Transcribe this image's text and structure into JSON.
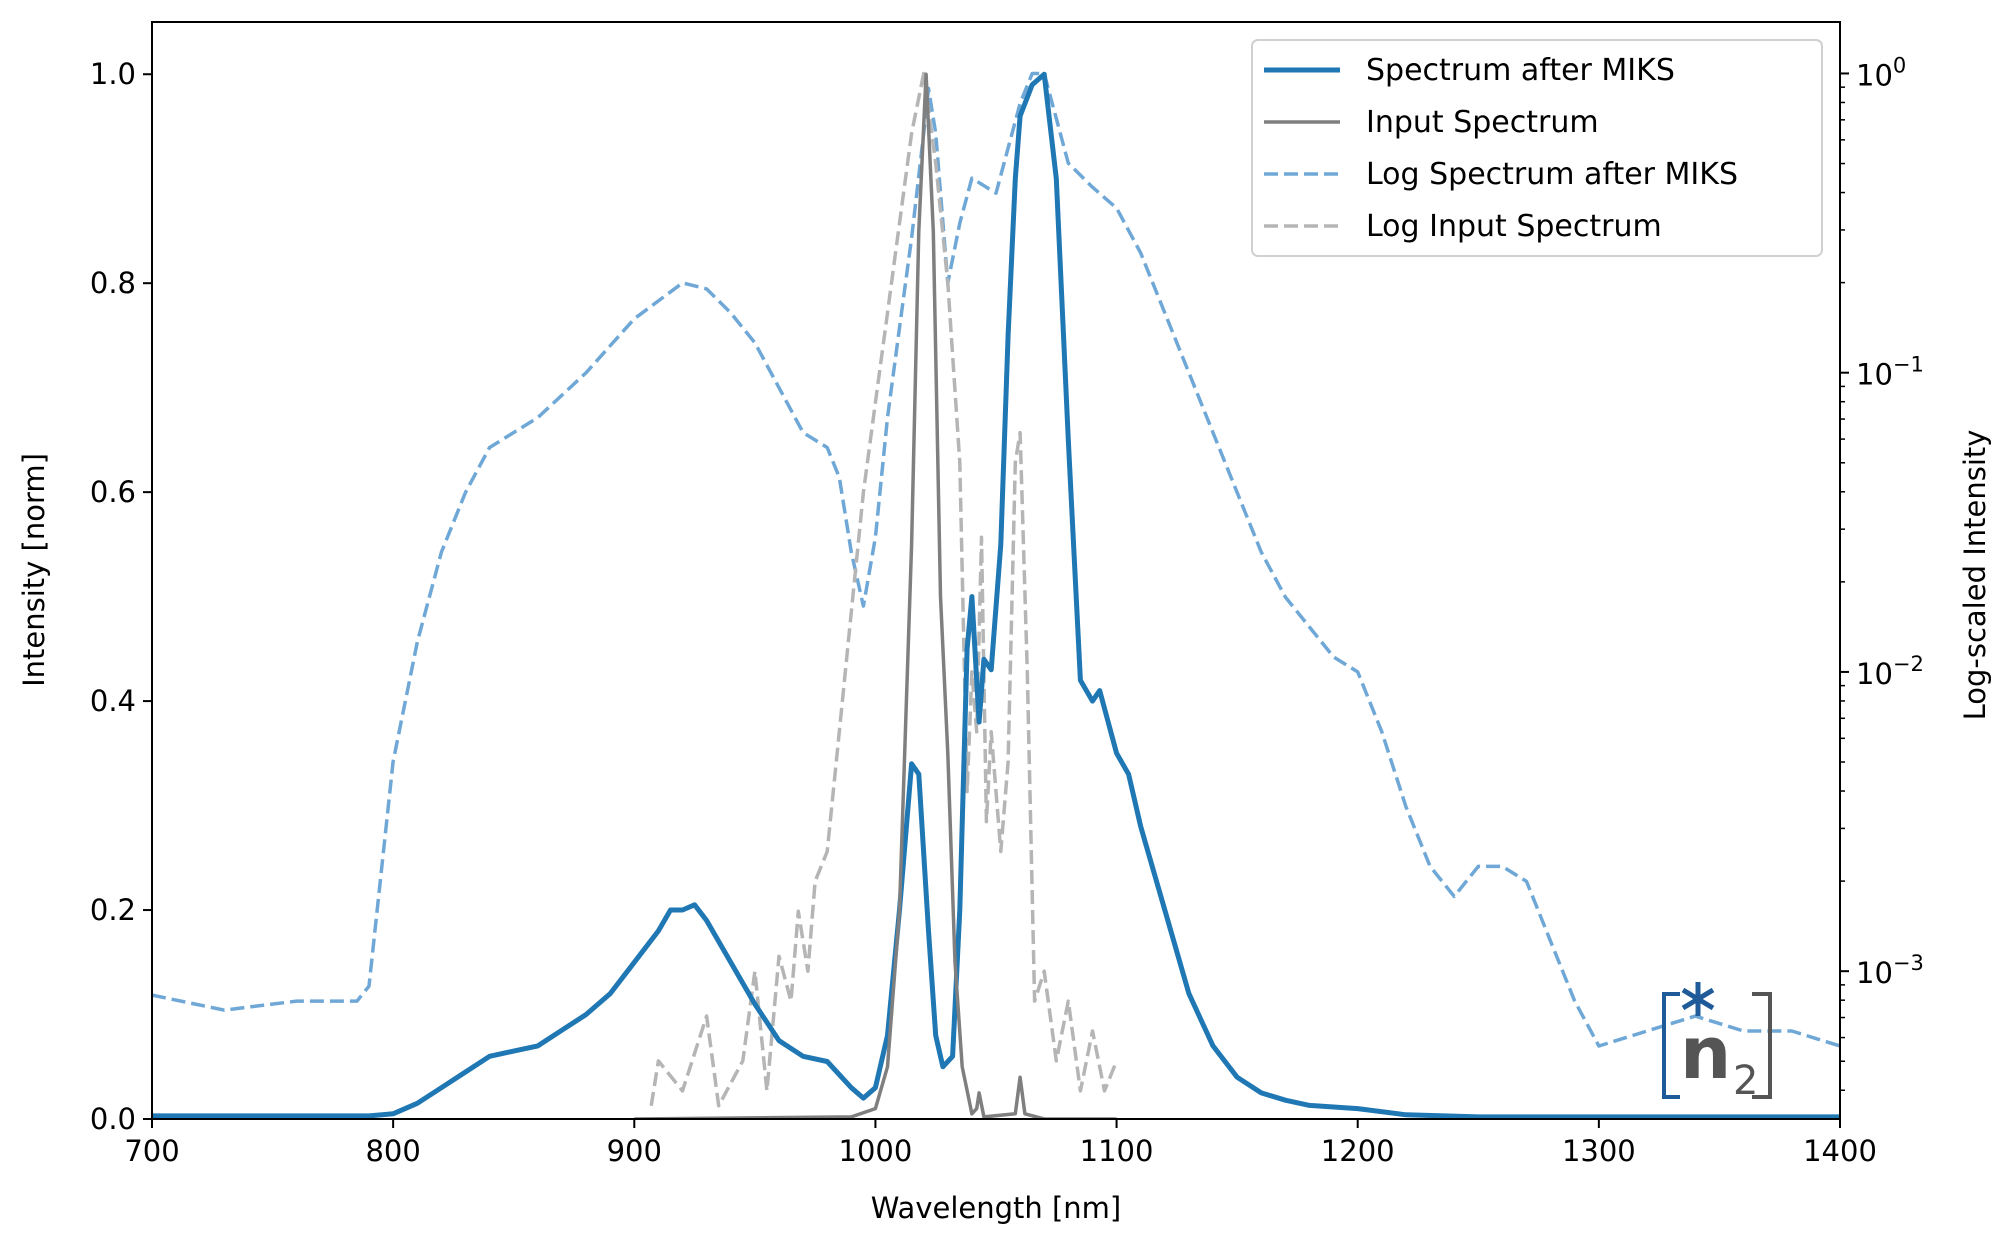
{
  "chart_data": {
    "type": "line",
    "title": "",
    "xlabel": "Wavelength [nm]",
    "ylabel": "Intensity [norm]",
    "ylabel_right": "Log-scaled Intensity",
    "xlim": [
      700,
      1400
    ],
    "ylim": [
      0,
      1.05
    ],
    "ylim_right_log10": [
      -3.494,
      0.172
    ],
    "xticks": [
      700,
      800,
      900,
      1000,
      1100,
      1200,
      1300,
      1400
    ],
    "xtick_labels": [
      "700",
      "800",
      "900",
      "1000",
      "1100",
      "1200",
      "1300",
      "1400"
    ],
    "yticks": [
      0,
      0.2,
      0.4,
      0.6,
      0.8,
      1.0
    ],
    "ytick_labels": [
      "0.0",
      "0.2",
      "0.4",
      "0.6",
      "0.8",
      "1.0"
    ],
    "yticks_right_exp": [
      0,
      -1,
      -2,
      -3
    ],
    "ytick_right_base": "10",
    "ytick_right_exp_labels": [
      "0",
      "−1",
      "−2",
      "−3"
    ],
    "grid": false,
    "legend_position": "top-right",
    "series": [
      {
        "name": "Spectrum after MIKS",
        "axis": "left",
        "style": "solid",
        "color": "#1f77b4",
        "x": [
          700,
          790,
          800,
          810,
          820,
          830,
          840,
          850,
          860,
          870,
          880,
          890,
          900,
          910,
          915,
          920,
          925,
          930,
          940,
          950,
          960,
          970,
          980,
          990,
          995,
          1000,
          1005,
          1010,
          1015,
          1018,
          1022,
          1025,
          1028,
          1032,
          1035,
          1038,
          1040,
          1043,
          1045,
          1048,
          1052,
          1055,
          1058,
          1060,
          1065,
          1070,
          1075,
          1080,
          1085,
          1090,
          1093,
          1100,
          1105,
          1110,
          1120,
          1130,
          1140,
          1150,
          1160,
          1170,
          1180,
          1200,
          1220,
          1250,
          1400
        ],
        "y": [
          0.003,
          0.003,
          0.005,
          0.015,
          0.03,
          0.045,
          0.06,
          0.065,
          0.07,
          0.085,
          0.1,
          0.12,
          0.15,
          0.18,
          0.2,
          0.2,
          0.205,
          0.19,
          0.15,
          0.11,
          0.075,
          0.06,
          0.055,
          0.03,
          0.02,
          0.03,
          0.08,
          0.2,
          0.34,
          0.33,
          0.18,
          0.08,
          0.05,
          0.06,
          0.2,
          0.45,
          0.5,
          0.38,
          0.44,
          0.43,
          0.55,
          0.75,
          0.9,
          0.96,
          0.99,
          1.0,
          0.9,
          0.65,
          0.42,
          0.4,
          0.41,
          0.35,
          0.33,
          0.28,
          0.2,
          0.12,
          0.07,
          0.04,
          0.025,
          0.018,
          0.013,
          0.01,
          0.004,
          0.002,
          0.002
        ]
      },
      {
        "name": "Input Spectrum",
        "axis": "left",
        "style": "solid",
        "color": "#7f7f7f",
        "x": [
          900,
          990,
          1000,
          1005,
          1010,
          1015,
          1018,
          1021,
          1024,
          1027,
          1030,
          1033,
          1036,
          1040,
          1042,
          1043,
          1045,
          1058,
          1060,
          1062,
          1070,
          1100
        ],
        "y": [
          0,
          0.002,
          0.01,
          0.05,
          0.2,
          0.55,
          0.85,
          1.0,
          0.85,
          0.5,
          0.35,
          0.15,
          0.05,
          0.005,
          0.01,
          0.025,
          0.002,
          0.005,
          0.04,
          0.005,
          0,
          0
        ]
      },
      {
        "name": "Log Spectrum after MIKS",
        "axis": "right",
        "style": "dashed",
        "color": "#6fa8d6",
        "x": [
          700,
          730,
          760,
          785,
          790,
          800,
          810,
          820,
          830,
          840,
          860,
          880,
          900,
          920,
          930,
          940,
          950,
          960,
          970,
          980,
          985,
          990,
          995,
          1000,
          1005,
          1010,
          1015,
          1020,
          1022,
          1025,
          1030,
          1035,
          1040,
          1050,
          1060,
          1065,
          1070,
          1080,
          1090,
          1100,
          1110,
          1120,
          1130,
          1140,
          1150,
          1160,
          1170,
          1180,
          1190,
          1200,
          1210,
          1220,
          1230,
          1240,
          1250,
          1260,
          1270,
          1280,
          1290,
          1300,
          1320,
          1340,
          1360,
          1380,
          1400
        ],
        "log10_y": [
          -3.08,
          -3.13,
          -3.1,
          -3.1,
          -3.05,
          -2.3,
          -1.9,
          -1.6,
          -1.4,
          -1.25,
          -1.15,
          -1.0,
          -0.82,
          -0.7,
          -0.72,
          -0.8,
          -0.9,
          -1.05,
          -1.2,
          -1.25,
          -1.35,
          -1.6,
          -1.78,
          -1.55,
          -1.15,
          -0.85,
          -0.55,
          -0.2,
          -0.05,
          -0.2,
          -0.7,
          -0.5,
          -0.35,
          -0.4,
          -0.1,
          0,
          0,
          -0.3,
          -0.38,
          -0.45,
          -0.6,
          -0.8,
          -1.0,
          -1.2,
          -1.4,
          -1.6,
          -1.75,
          -1.85,
          -1.95,
          -2.0,
          -2.2,
          -2.45,
          -2.65,
          -2.75,
          -2.65,
          -2.65,
          -2.7,
          -2.9,
          -3.1,
          -3.25,
          -3.2,
          -3.15,
          -3.2,
          -3.2,
          -3.25
        ]
      },
      {
        "name": "Log Input Spectrum",
        "axis": "right",
        "style": "dashed",
        "color": "#b5b5b5",
        "x": [
          907,
          910,
          920,
          930,
          935,
          945,
          950,
          955,
          960,
          965,
          968,
          972,
          975,
          980,
          985,
          990,
          995,
          1000,
          1005,
          1010,
          1015,
          1020,
          1025,
          1030,
          1035,
          1038,
          1040,
          1042,
          1044,
          1046,
          1048,
          1052,
          1055,
          1058,
          1060,
          1063,
          1066,
          1070,
          1075,
          1080,
          1085,
          1090,
          1095,
          1100
        ],
        "log10_y": [
          -3.45,
          -3.3,
          -3.4,
          -3.15,
          -3.45,
          -3.3,
          -3.0,
          -3.4,
          -2.95,
          -3.1,
          -2.8,
          -3.0,
          -2.7,
          -2.6,
          -2.2,
          -1.8,
          -1.4,
          -1.1,
          -0.8,
          -0.5,
          -0.2,
          0,
          -0.3,
          -0.7,
          -1.3,
          -2.4,
          -2.0,
          -2.2,
          -1.55,
          -2.5,
          -2.2,
          -2.6,
          -2.3,
          -1.3,
          -1.2,
          -2.0,
          -3.1,
          -3.0,
          -3.3,
          -3.1,
          -3.4,
          -3.2,
          -3.4,
          -3.3
        ]
      }
    ]
  },
  "logo": {
    "text": "n2",
    "main": "n",
    "subscript": "2",
    "blue": "#1f5b99",
    "gray": "#555555"
  }
}
